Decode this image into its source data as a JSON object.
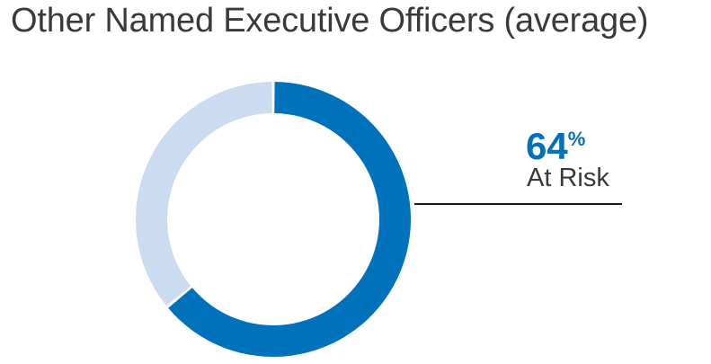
{
  "colors": {
    "at_risk": "#0072bc",
    "remainder": "#ccdcf0",
    "leader": "#1a1a1a",
    "text": "#3a3a3a"
  },
  "chart_data": {
    "type": "pie",
    "variant": "donut",
    "title": "Other Named Executive Officers (average)",
    "slices": [
      {
        "label": "At Risk",
        "value": 64
      },
      {
        "label": "",
        "value": 36
      }
    ],
    "callout": {
      "value": "64",
      "unit": "%",
      "label": "At Risk"
    }
  }
}
